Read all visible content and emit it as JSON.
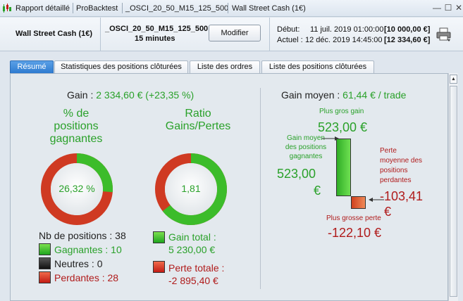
{
  "titlebar": {
    "app": "Rapport détaillé",
    "tool": "ProBacktest",
    "system": "_OSCI_20_50_M15_125_500",
    "instrument": "Wall Street Cash (1€)"
  },
  "infobar": {
    "instrument": "Wall Street Cash (1€)",
    "system": "_OSCI_20_50_M15_125_500",
    "timeframe": "15 minutes",
    "modify_label": "Modifier",
    "start_label": "Début:",
    "start_date": "11 juil. 2019 01:00:00",
    "start_value": "[10 000,00 €]",
    "current_label": "Actuel :",
    "current_date": "12 déc. 2019 14:45:00",
    "current_value": "[12 334,60 €]"
  },
  "tabs": [
    {
      "label": "Résumé",
      "active": true
    },
    {
      "label": "Statistiques des positions clôturées",
      "active": false
    },
    {
      "label": "Liste des ordres",
      "active": false
    },
    {
      "label": "Liste des positions clôturées",
      "active": false
    }
  ],
  "summary": {
    "gain_label": "Gain :",
    "gain_value": "2 334,60 € (+23,35 %)",
    "winrate_title_1": "% de",
    "winrate_title_2": "positions",
    "winrate_title_3": "gagnantes",
    "winrate_value": "26,32 %",
    "winrate_fraction": 0.2632,
    "ratio_title_1": "Ratio",
    "ratio_title_2": "Gains/Pertes",
    "ratio_value": "1,81",
    "ratio_gain_fraction": 0.644,
    "positions_label": "Nb de positions : 38",
    "winning_label": "Gagnantes : 10",
    "neutral_label": "Neutres : 0",
    "losing_label": "Perdantes : 28",
    "total_gain_label": "Gain total :",
    "total_gain_value": "5 230,00 €",
    "total_loss_label": "Perte totale :",
    "total_loss_value": "-2 895,40 €"
  },
  "average": {
    "title_label": "Gain moyen :",
    "title_value": "61,44 € / trade",
    "biggest_gain_label": "Plus gros gain",
    "biggest_gain_value": "523,00 €",
    "avg_win_label_1": "Gain moyen",
    "avg_win_label_2": "des positions",
    "avg_win_label_3": "gagnantes",
    "avg_win_value_1": "523,00",
    "avg_win_value_2": "€",
    "avg_loss_label_1": "Perte",
    "avg_loss_label_2": "moyenne des",
    "avg_loss_label_3": "positions",
    "avg_loss_label_4": "perdantes",
    "avg_loss_value_1": "-103,41",
    "avg_loss_value_2": "€",
    "biggest_loss_label": "Plus grosse perte",
    "biggest_loss_value": "-122,10 €"
  },
  "colors": {
    "gain": "#2aa12a",
    "loss": "#b01b1b",
    "tab_active": "#2e7bd0"
  }
}
